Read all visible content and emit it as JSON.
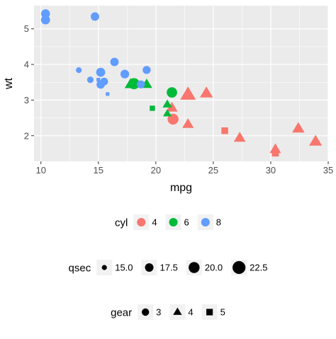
{
  "chart_data": {
    "type": "scatter",
    "xlabel": "mpg",
    "ylabel": "wt",
    "xlim": [
      9.4,
      35.0
    ],
    "ylim": [
      1.28,
      5.65
    ],
    "x_ticks": [
      10,
      15,
      20,
      25,
      30,
      35
    ],
    "y_ticks": [
      2,
      3,
      4,
      5
    ],
    "grid": true,
    "legend_position": "bottom",
    "colors": {
      "4": "#F8766D",
      "6": "#00BA38",
      "8": "#619CFF"
    },
    "points": [
      {
        "mpg": 21.0,
        "wt": 2.62,
        "cyl": 6,
        "qsec": 16.46,
        "gear": 4
      },
      {
        "mpg": 21.0,
        "wt": 2.875,
        "cyl": 6,
        "qsec": 17.02,
        "gear": 4
      },
      {
        "mpg": 22.8,
        "wt": 2.32,
        "cyl": 4,
        "qsec": 18.61,
        "gear": 4
      },
      {
        "mpg": 21.4,
        "wt": 3.215,
        "cyl": 6,
        "qsec": 19.44,
        "gear": 3
      },
      {
        "mpg": 18.7,
        "wt": 3.44,
        "cyl": 8,
        "qsec": 17.02,
        "gear": 3
      },
      {
        "mpg": 18.1,
        "wt": 3.46,
        "cyl": 6,
        "qsec": 20.22,
        "gear": 3
      },
      {
        "mpg": 14.3,
        "wt": 3.57,
        "cyl": 8,
        "qsec": 15.84,
        "gear": 3
      },
      {
        "mpg": 24.4,
        "wt": 3.19,
        "cyl": 4,
        "qsec": 20.0,
        "gear": 4
      },
      {
        "mpg": 22.8,
        "wt": 3.15,
        "cyl": 4,
        "qsec": 22.9,
        "gear": 4
      },
      {
        "mpg": 19.2,
        "wt": 3.44,
        "cyl": 6,
        "qsec": 18.3,
        "gear": 4
      },
      {
        "mpg": 17.8,
        "wt": 3.44,
        "cyl": 6,
        "qsec": 18.9,
        "gear": 4
      },
      {
        "mpg": 16.4,
        "wt": 4.07,
        "cyl": 8,
        "qsec": 17.4,
        "gear": 3
      },
      {
        "mpg": 17.3,
        "wt": 3.73,
        "cyl": 8,
        "qsec": 17.6,
        "gear": 3
      },
      {
        "mpg": 15.2,
        "wt": 3.78,
        "cyl": 8,
        "qsec": 18.0,
        "gear": 3
      },
      {
        "mpg": 10.4,
        "wt": 5.25,
        "cyl": 8,
        "qsec": 17.98,
        "gear": 3
      },
      {
        "mpg": 10.4,
        "wt": 5.424,
        "cyl": 8,
        "qsec": 17.82,
        "gear": 3
      },
      {
        "mpg": 14.7,
        "wt": 5.345,
        "cyl": 8,
        "qsec": 17.42,
        "gear": 3
      },
      {
        "mpg": 32.4,
        "wt": 2.2,
        "cyl": 4,
        "qsec": 19.47,
        "gear": 4
      },
      {
        "mpg": 30.4,
        "wt": 1.615,
        "cyl": 4,
        "qsec": 18.52,
        "gear": 4
      },
      {
        "mpg": 33.9,
        "wt": 1.835,
        "cyl": 4,
        "qsec": 19.9,
        "gear": 4
      },
      {
        "mpg": 21.5,
        "wt": 2.465,
        "cyl": 4,
        "qsec": 20.01,
        "gear": 3
      },
      {
        "mpg": 15.5,
        "wt": 3.52,
        "cyl": 8,
        "qsec": 16.87,
        "gear": 3
      },
      {
        "mpg": 15.2,
        "wt": 3.435,
        "cyl": 8,
        "qsec": 17.3,
        "gear": 3
      },
      {
        "mpg": 13.3,
        "wt": 3.84,
        "cyl": 8,
        "qsec": 15.41,
        "gear": 3
      },
      {
        "mpg": 19.2,
        "wt": 3.845,
        "cyl": 8,
        "qsec": 17.05,
        "gear": 3
      },
      {
        "mpg": 27.3,
        "wt": 1.935,
        "cyl": 4,
        "qsec": 18.9,
        "gear": 4
      },
      {
        "mpg": 26.0,
        "wt": 2.14,
        "cyl": 4,
        "qsec": 16.7,
        "gear": 5
      },
      {
        "mpg": 30.4,
        "wt": 1.513,
        "cyl": 4,
        "qsec": 16.9,
        "gear": 5
      },
      {
        "mpg": 15.8,
        "wt": 3.17,
        "cyl": 8,
        "qsec": 14.5,
        "gear": 5
      },
      {
        "mpg": 19.7,
        "wt": 2.77,
        "cyl": 6,
        "qsec": 15.5,
        "gear": 5
      },
      {
        "mpg": 15.0,
        "wt": 3.57,
        "cyl": 8,
        "qsec": 14.6,
        "gear": 5
      },
      {
        "mpg": 21.4,
        "wt": 2.78,
        "cyl": 4,
        "qsec": 18.6,
        "gear": 4
      }
    ],
    "legends": [
      {
        "title": "cyl",
        "items": [
          {
            "label": "4",
            "color": "#F8766D",
            "shape": "circle",
            "qsec": 17.5
          },
          {
            "label": "6",
            "color": "#00BA38",
            "shape": "circle",
            "qsec": 17.5
          },
          {
            "label": "8",
            "color": "#619CFF",
            "shape": "circle",
            "qsec": 17.5
          }
        ]
      },
      {
        "title": "qsec",
        "items": [
          {
            "label": "15.0",
            "color": "#000000",
            "shape": "circle",
            "qsec": 15.0
          },
          {
            "label": "17.5",
            "color": "#000000",
            "shape": "circle",
            "qsec": 17.5
          },
          {
            "label": "20.0",
            "color": "#000000",
            "shape": "circle",
            "qsec": 20.0
          },
          {
            "label": "22.5",
            "color": "#000000",
            "shape": "circle",
            "qsec": 22.5
          }
        ]
      },
      {
        "title": "gear",
        "items": [
          {
            "label": "3",
            "color": "#000000",
            "shape": "circle",
            "qsec": 16.5
          },
          {
            "label": "4",
            "color": "#000000",
            "shape": "triangle",
            "qsec": 16.5
          },
          {
            "label": "5",
            "color": "#000000",
            "shape": "square",
            "qsec": 16.5
          }
        ]
      }
    ]
  }
}
